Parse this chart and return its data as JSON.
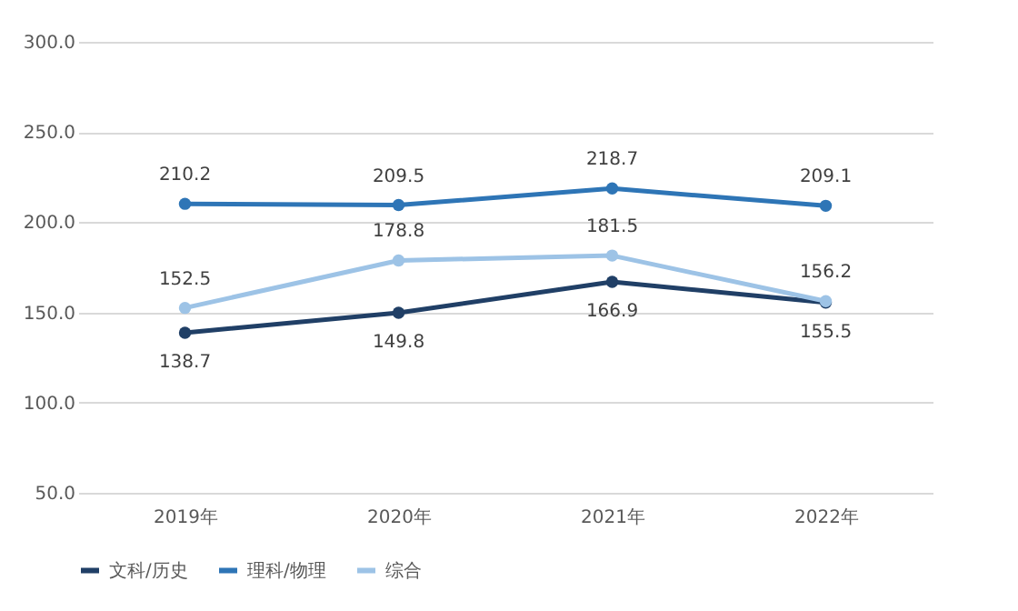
{
  "chart_data": {
    "type": "line",
    "categories": [
      "2019年",
      "2020年",
      "2021年",
      "2022年"
    ],
    "series": [
      {
        "name": "文科/历史",
        "color": "#203f66",
        "values": [
          138.7,
          149.8,
          166.9,
          155.5
        ]
      },
      {
        "name": "理科/物理",
        "color": "#2e75b6",
        "values": [
          210.2,
          209.5,
          218.7,
          209.1
        ]
      },
      {
        "name": "综合",
        "color": "#9dc3e6",
        "values": [
          152.5,
          178.8,
          181.5,
          156.2
        ]
      }
    ],
    "ylim": [
      50,
      300
    ],
    "yticks": [
      {
        "value": 50,
        "label": "50.0"
      },
      {
        "value": 100,
        "label": "100.0"
      },
      {
        "value": 150,
        "label": "150.0"
      },
      {
        "value": 200,
        "label": "200.0"
      },
      {
        "value": 250,
        "label": "250.0"
      },
      {
        "value": 300,
        "label": "300.0"
      }
    ],
    "grid": "y",
    "legend": "bottom",
    "marker": "circle",
    "line_style": "solid",
    "data_labels": true
  }
}
